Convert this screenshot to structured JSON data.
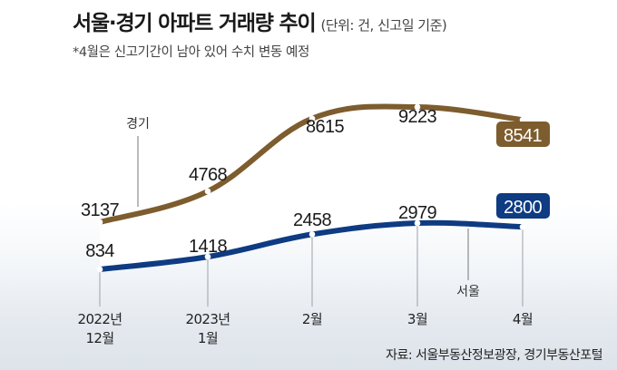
{
  "header": {
    "title": "서울·경기 아파트 거래량 추이",
    "subtitle": "(단위: 건, 신고일 기준)",
    "note": "*4월은 신고기간이 남아 있어 수치 변동 예정"
  },
  "source": "자료: 서울부동산정보광장, 경기부동산포털",
  "colors": {
    "gyeonggi": "#7d5c2e",
    "seoul": "#0e3b82"
  },
  "chart_data": {
    "type": "line",
    "title": "서울·경기 아파트 거래량 추이",
    "subtitle": "(단위: 건, 신고일 기준)",
    "categories": [
      [
        "2022년",
        "12월"
      ],
      [
        "2023년",
        "1월"
      ],
      [
        "2월"
      ],
      [
        "3월"
      ],
      [
        "4월"
      ]
    ],
    "series": [
      {
        "name": "경기",
        "values": [
          3137,
          4768,
          8615,
          9223,
          8541
        ],
        "color": "#7d5c2e"
      },
      {
        "name": "서울",
        "values": [
          834,
          1418,
          2458,
          2979,
          2800
        ],
        "color": "#0e3b82"
      }
    ],
    "highlight_last_value": true,
    "fill_between_series": true
  }
}
